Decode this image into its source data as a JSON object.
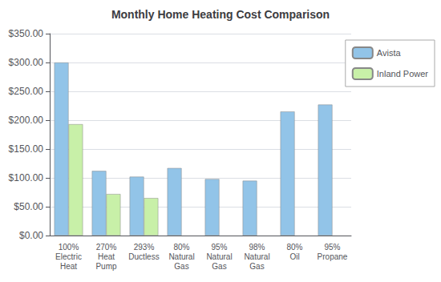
{
  "chart_data": {
    "type": "bar",
    "title": "Monthly Home Heating Cost Comparison",
    "categories": [
      "100%\nElectric\nHeat",
      "270%\nHeat\nPump",
      "293%\nDuctless",
      "80%\nNatural\nGas",
      "95%\nNatural\nGas",
      "98%\nNatural\nGas",
      "80%\nOil",
      "95%\nPropane"
    ],
    "series": [
      {
        "name": "Avista",
        "color": "#92C4E8",
        "values": [
          300,
          112,
          102,
          117,
          98,
          95,
          215,
          227
        ]
      },
      {
        "name": "Inland Power",
        "color": "#C8F0A8",
        "values": [
          193,
          72,
          65,
          null,
          null,
          null,
          null,
          null
        ]
      }
    ],
    "ylim": [
      0,
      350
    ],
    "yticks": [
      {
        "value": 0,
        "label": "$0.00"
      },
      {
        "value": 50,
        "label": "$50.00"
      },
      {
        "value": 100,
        "label": "$100.00"
      },
      {
        "value": 150,
        "label": "$150.00"
      },
      {
        "value": 200,
        "label": "$200.00"
      },
      {
        "value": 250,
        "label": "$250.00"
      },
      {
        "value": 300,
        "label": "$300.00"
      },
      {
        "value": 350,
        "label": "$350.00"
      }
    ],
    "grid": true,
    "legend": "upper right"
  }
}
